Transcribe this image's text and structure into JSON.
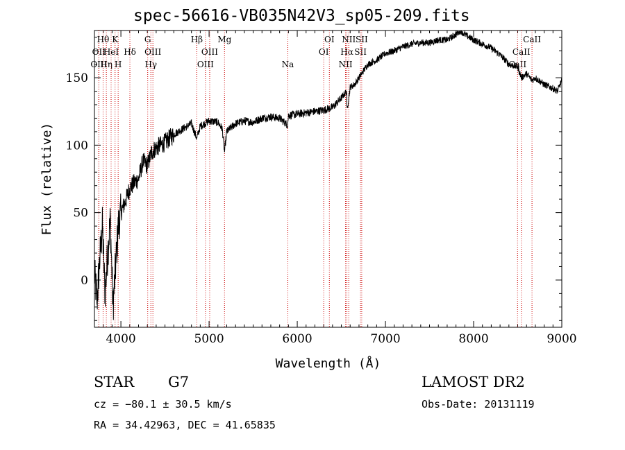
{
  "chart_data": {
    "type": "line",
    "title": "spec-56616-VB035N42V3_sp05-209.fits",
    "xlabel": "Wavelength (Å)",
    "ylabel": "Flux (relative)",
    "xlim": [
      3700,
      9000
    ],
    "ylim": [
      -35,
      185
    ],
    "xticks": [
      4000,
      5000,
      6000,
      7000,
      8000,
      9000
    ],
    "yticks": [
      0,
      50,
      100,
      150
    ],
    "line_color": "#000000",
    "marker_color": "#cc0000",
    "series": [
      {
        "x": [
          3700,
          3730,
          3760,
          3790,
          3820,
          3850,
          3880,
          3910,
          3940,
          3970,
          4000,
          4050,
          4100,
          4150,
          4200,
          4250,
          4300,
          4350,
          4400,
          4450,
          4500,
          4600,
          4700,
          4800,
          4860,
          4900,
          5000,
          5100,
          5150,
          5175,
          5200,
          5300,
          5400,
          5500,
          5600,
          5700,
          5800,
          5890,
          5900,
          6000,
          6100,
          6200,
          6300,
          6400,
          6500,
          6560,
          6563,
          6600,
          6650,
          6700,
          6750,
          6800,
          6900,
          7000,
          7100,
          7200,
          7300,
          7400,
          7500,
          7600,
          7700,
          7800,
          7850,
          7900,
          8000,
          8100,
          8200,
          8300,
          8400,
          8500,
          8542,
          8600,
          8662,
          8700,
          8800,
          8900,
          8950,
          9000
        ],
        "values": [
          5,
          -15,
          15,
          40,
          -10,
          20,
          45,
          -20,
          10,
          40,
          50,
          58,
          68,
          72,
          75,
          88,
          85,
          95,
          98,
          100,
          102,
          108,
          112,
          116,
          105,
          114,
          118,
          117,
          112,
          95,
          110,
          116,
          118,
          117,
          120,
          121,
          120,
          115,
          122,
          123,
          124,
          125,
          126,
          128,
          135,
          140,
          125,
          143,
          145,
          150,
          155,
          160,
          163,
          168,
          170,
          173,
          175,
          176,
          176,
          178,
          178,
          182,
          185,
          182,
          178,
          175,
          172,
          167,
          160,
          158,
          150,
          153,
          148,
          150,
          145,
          142,
          140,
          148
        ]
      }
    ],
    "lines": [
      {
        "x": 3750,
        "label": "OII",
        "row": 1
      },
      {
        "x": 3750,
        "label": "OIII",
        "row": 2
      },
      {
        "x": 3798,
        "label": "Hθ",
        "row": 0
      },
      {
        "x": 3835,
        "label": "Hη",
        "row": 2
      },
      {
        "x": 3889,
        "label": "HeI",
        "row": 1
      },
      {
        "x": 3934,
        "label": "K",
        "row": 0
      },
      {
        "x": 3969,
        "label": "H",
        "row": 2
      },
      {
        "x": 4102,
        "label": "Hδ",
        "row": 1
      },
      {
        "x": 4304,
        "label": "G",
        "row": 0
      },
      {
        "x": 4340,
        "label": "Hγ",
        "row": 2
      },
      {
        "x": 4363,
        "label": "OIII",
        "row": 1
      },
      {
        "x": 4861,
        "label": "Hβ",
        "row": 0
      },
      {
        "x": 4959,
        "label": "OIII",
        "row": 2
      },
      {
        "x": 5007,
        "label": "OIII",
        "row": 1
      },
      {
        "x": 5175,
        "label": "Mg",
        "row": 0
      },
      {
        "x": 5893,
        "label": "Na",
        "row": 2
      },
      {
        "x": 6300,
        "label": "OI",
        "row": 1
      },
      {
        "x": 6364,
        "label": "OI",
        "row": 0
      },
      {
        "x": 6548,
        "label": "NII",
        "row": 2
      },
      {
        "x": 6563,
        "label": "Hα",
        "row": 1
      },
      {
        "x": 6584,
        "label": "NII",
        "row": 0
      },
      {
        "x": 6717,
        "label": "SII",
        "row": 1
      },
      {
        "x": 6731,
        "label": "SII",
        "row": 0
      },
      {
        "x": 8498,
        "label": "CaII",
        "row": 2
      },
      {
        "x": 8542,
        "label": "CaII",
        "row": 1
      },
      {
        "x": 8662,
        "label": "CaII",
        "row": 0
      }
    ]
  },
  "footer": {
    "class_label": "STAR",
    "subclass": "G7",
    "cz": "cz = −80.1 ± 30.5 km/s",
    "radec": "RA =  34.42963, DEC =  41.65835",
    "survey": "LAMOST DR2",
    "obs_date": "Obs-Date: 20131119"
  }
}
